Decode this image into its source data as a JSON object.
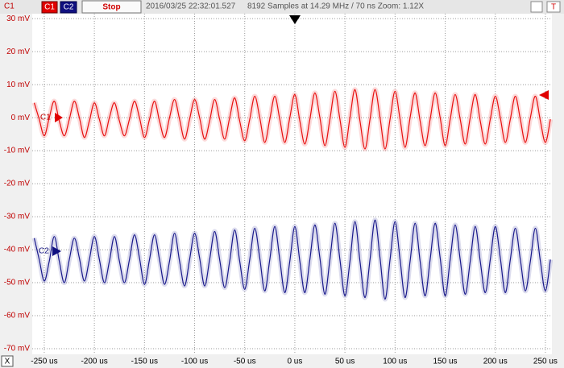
{
  "toolbar": {
    "channel_label": "C1",
    "button_c1": "C1",
    "button_c2": "C2",
    "button_stop": "Stop",
    "timestamp": "2016/03/25 22:32:01.527",
    "info": "8192 Samples at 14.29 MHz / 70 ns Zoom: 1.12X",
    "close": "X"
  },
  "chart_data": {
    "type": "line",
    "x": [
      -260,
      -255,
      -250,
      -245,
      -240,
      -235,
      -230,
      -225,
      -220,
      -215,
      -210,
      -205,
      -200,
      -195,
      -190,
      -185,
      -180,
      -175,
      -170,
      -165,
      -160,
      -155,
      -150,
      -145,
      -140,
      -135,
      -130,
      -125,
      -120,
      -115,
      -110,
      -105,
      -100,
      -95,
      -90,
      -85,
      -80,
      -75,
      -70,
      -65,
      -60,
      -55,
      -50,
      -45,
      -40,
      -35,
      -30,
      -25,
      -20,
      -15,
      -10,
      -5,
      0,
      5,
      10,
      15,
      20,
      25,
      30,
      35,
      40,
      45,
      50,
      55,
      60,
      65,
      70,
      75,
      80,
      85,
      90,
      95,
      100,
      105,
      110,
      115,
      120,
      125,
      130,
      135,
      140,
      145,
      150,
      155,
      160,
      165,
      170,
      175,
      180,
      185,
      190,
      195,
      200,
      205,
      210,
      215,
      220,
      225,
      230,
      235,
      240,
      245,
      250,
      255
    ],
    "series": [
      {
        "name": "C1",
        "color": "#e81010",
        "values": [
          4.5,
          -0.5,
          -5.5,
          0,
          5,
          -1,
          -5.5,
          -0.5,
          5,
          0,
          -6,
          -1,
          4.5,
          -0.5,
          -5.5,
          0,
          4.5,
          -1,
          -5.5,
          -0.5,
          5,
          0,
          -6,
          -0.5,
          5,
          -1,
          -6,
          0,
          5.5,
          -0.5,
          -6.5,
          -0.5,
          5.5,
          0,
          -6.5,
          -1,
          5.5,
          -0.5,
          -6.5,
          0,
          6,
          -1,
          -7,
          -0.5,
          6.5,
          0,
          -7.5,
          -0.5,
          6.5,
          -0.5,
          -7.5,
          0,
          7,
          -1,
          -8,
          -0.5,
          7.5,
          0,
          -8.5,
          -0.5,
          8,
          -0.5,
          -9,
          0,
          8.5,
          -1,
          -9.5,
          -0.5,
          8.5,
          0,
          -9.5,
          -0.5,
          8,
          -0.5,
          -9,
          0,
          7.5,
          -1,
          -8.5,
          -0.5,
          7.5,
          0,
          -8.5,
          -0.5,
          7,
          -0.5,
          -8,
          0,
          7,
          -1,
          -8,
          -0.5,
          6.5,
          0,
          -7.5,
          -0.5,
          6.5,
          -0.5,
          -7.5,
          0,
          6.5,
          -1,
          -7.5,
          -0.5
        ]
      },
      {
        "name": "C2",
        "color": "#1a1a8c",
        "values": [
          -36.5,
          -43,
          -49.5,
          -43.5,
          -36,
          -43.5,
          -50,
          -43,
          -36.5,
          -42.5,
          -49.5,
          -43,
          -36,
          -43,
          -50,
          -43.5,
          -36,
          -43.5,
          -50,
          -43,
          -35.5,
          -42.5,
          -50.5,
          -43,
          -35.5,
          -43,
          -50.5,
          -43.5,
          -35,
          -43.5,
          -51,
          -43,
          -35,
          -42.5,
          -51,
          -43,
          -34.5,
          -43,
          -51.5,
          -43.5,
          -34,
          -43.5,
          -52,
          -43,
          -33.5,
          -42.5,
          -52.5,
          -43,
          -33,
          -43,
          -53,
          -43.5,
          -33,
          -43.5,
          -53,
          -43,
          -32.5,
          -42.5,
          -53.5,
          -43,
          -32,
          -43,
          -54,
          -43.5,
          -31.5,
          -43.5,
          -54.5,
          -43,
          -31,
          -42.5,
          -55,
          -43,
          -31.5,
          -43,
          -54.5,
          -43.5,
          -32,
          -43.5,
          -54,
          -43,
          -32,
          -42.5,
          -54,
          -43,
          -32.5,
          -43,
          -53.5,
          -43.5,
          -33,
          -43.5,
          -53,
          -43,
          -33,
          -42.5,
          -53,
          -43,
          -33.5,
          -43,
          -52.5,
          -43.5,
          -33.5,
          -43.5,
          -52.5,
          -43
        ]
      }
    ],
    "xlim": [
      -262,
      256.5
    ],
    "xticks": [
      {
        "value": -250,
        "label": "-250 us"
      },
      {
        "value": -200,
        "label": "-200 us"
      },
      {
        "value": -150,
        "label": "-150 us"
      },
      {
        "value": -100,
        "label": "-100 us"
      },
      {
        "value": -50,
        "label": "-50 us"
      },
      {
        "value": 0,
        "label": "0 us"
      },
      {
        "value": 50,
        "label": "50 us"
      },
      {
        "value": 100,
        "label": "100 us"
      },
      {
        "value": 150,
        "label": "150 us"
      },
      {
        "value": 200,
        "label": "200 us"
      },
      {
        "value": 250,
        "label": "250 us"
      }
    ],
    "ylim": [
      -71.7,
      31.5
    ],
    "yticks": [
      {
        "value": 30,
        "label": "30 mV"
      },
      {
        "value": 20,
        "label": "20 mV"
      },
      {
        "value": 10,
        "label": "10 mV"
      },
      {
        "value": 0,
        "label": "0 mV"
      },
      {
        "value": -10,
        "label": "-10 mV"
      },
      {
        "value": -20,
        "label": "-20 mV"
      },
      {
        "value": -30,
        "label": "-30 mV"
      },
      {
        "value": -40,
        "label": "-40 mV"
      },
      {
        "value": -50,
        "label": "-50 mV"
      },
      {
        "value": -60,
        "label": "-60 mV"
      },
      {
        "value": -70,
        "label": "-70 mV"
      }
    ],
    "grid": true
  }
}
